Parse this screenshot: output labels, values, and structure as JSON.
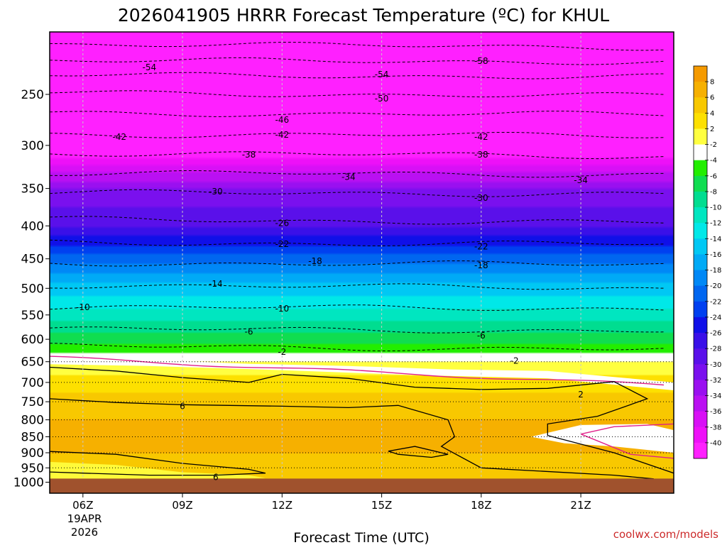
{
  "chart_data": {
    "type": "heatmap",
    "title": "2026041905 HRRR Forecast Temperature (ºC) for KHUL",
    "xlabel": "Forecast Time (UTC)",
    "ylabel": "",
    "credit": "coolwx.com/models",
    "x_ticks": [
      {
        "label": "06Z",
        "hour": 6
      },
      {
        "label": "09Z",
        "hour": 9
      },
      {
        "label": "12Z",
        "hour": 12
      },
      {
        "label": "15Z",
        "hour": 15
      },
      {
        "label": "18Z",
        "hour": 18
      },
      {
        "label": "21Z",
        "hour": 21
      }
    ],
    "x_date_line1": "19APR",
    "x_date_line2": "2026",
    "x_range_hours": [
      5,
      23.8
    ],
    "y_ticks": [
      250,
      300,
      350,
      400,
      450,
      500,
      550,
      600,
      650,
      700,
      750,
      800,
      850,
      900,
      950,
      1000
    ],
    "y_range_hpa": [
      200,
      1040
    ],
    "surface_pressure_hpa": 987,
    "colorbar_ticks": [
      "8",
      "6",
      "4",
      "2",
      "-2",
      "-4",
      "-6",
      "-8",
      "-10",
      "-12",
      "-14",
      "-16",
      "-18",
      "-20",
      "-22",
      "-24",
      "-26",
      "-28",
      "-30",
      "-32",
      "-34",
      "-36",
      "-38",
      "-40"
    ],
    "colorbar_colors": [
      "#f59a00",
      "#f6b000",
      "#f8c800",
      "#fde000",
      "#ffff40",
      "#ffffff",
      "#22ee00",
      "#10dd50",
      "#00dd90",
      "#00e6c0",
      "#00e8e8",
      "#00c8f4",
      "#00aaf6",
      "#0088f6",
      "#0066f0",
      "#0040f0",
      "#1010e8",
      "#3a10e8",
      "#5a10ea",
      "#7a10ee",
      "#9a10f0",
      "#ba10f2",
      "#d810f6",
      "#ee10f8",
      "#ff20ff"
    ],
    "temperature_levels": [
      {
        "p": 200,
        "t": -62
      },
      {
        "p": 250,
        "t": -51
      },
      {
        "p": 300,
        "t": -41
      },
      {
        "p": 350,
        "t": -30
      },
      {
        "p": 400,
        "t": -26
      },
      {
        "p": 450,
        "t": -19
      },
      {
        "p": 500,
        "t": -13
      },
      {
        "p": 550,
        "t": -9
      },
      {
        "p": 600,
        "t": -5
      },
      {
        "p": 650,
        "t": 0
      },
      {
        "p": 700,
        "t": 3
      },
      {
        "p": 750,
        "t": 5
      },
      {
        "p": 800,
        "t": 6
      },
      {
        "p": 850,
        "t": 7
      },
      {
        "p": 900,
        "t": 6
      },
      {
        "p": 950,
        "t": 5
      },
      {
        "p": 1000,
        "t": 5
      }
    ],
    "contour_labels": [
      {
        "text": "-58",
        "hour": 18.0,
        "p": 222
      },
      {
        "text": "-54",
        "hour": 8.0,
        "p": 227
      },
      {
        "text": "-54",
        "hour": 15.0,
        "p": 233
      },
      {
        "text": "-50",
        "hour": 15.0,
        "p": 254
      },
      {
        "text": "-46",
        "hour": 12.0,
        "p": 274
      },
      {
        "text": "-42",
        "hour": 7.1,
        "p": 291
      },
      {
        "text": "-42",
        "hour": 12.0,
        "p": 289
      },
      {
        "text": "-42",
        "hour": 18.0,
        "p": 291
      },
      {
        "text": "-38",
        "hour": 11.0,
        "p": 310
      },
      {
        "text": "-38",
        "hour": 18.0,
        "p": 310
      },
      {
        "text": "-34",
        "hour": 14.0,
        "p": 336
      },
      {
        "text": "-34",
        "hour": 21.0,
        "p": 340
      },
      {
        "text": "-30",
        "hour": 10.0,
        "p": 354
      },
      {
        "text": "-30",
        "hour": 18.0,
        "p": 362
      },
      {
        "text": "-26",
        "hour": 12.0,
        "p": 396
      },
      {
        "text": "-22",
        "hour": 12.0,
        "p": 427
      },
      {
        "text": "-22",
        "hour": 18.0,
        "p": 431
      },
      {
        "text": "-18",
        "hour": 13.0,
        "p": 454
      },
      {
        "text": "-18",
        "hour": 18.0,
        "p": 461
      },
      {
        "text": "-14",
        "hour": 10.0,
        "p": 492
      },
      {
        "text": "-10",
        "hour": 6.0,
        "p": 535
      },
      {
        "text": "-10",
        "hour": 12.0,
        "p": 538
      },
      {
        "text": "-6",
        "hour": 11.0,
        "p": 584
      },
      {
        "text": "-6",
        "hour": 18.0,
        "p": 592
      },
      {
        "text": "-2",
        "hour": 12.0,
        "p": 628
      },
      {
        "text": "-2",
        "hour": 19.0,
        "p": 648
      },
      {
        "text": "2",
        "hour": 21.0,
        "p": 731
      },
      {
        "text": "6",
        "hour": 9.0,
        "p": 762
      },
      {
        "text": "6",
        "hour": 10.0,
        "p": 982
      }
    ]
  }
}
